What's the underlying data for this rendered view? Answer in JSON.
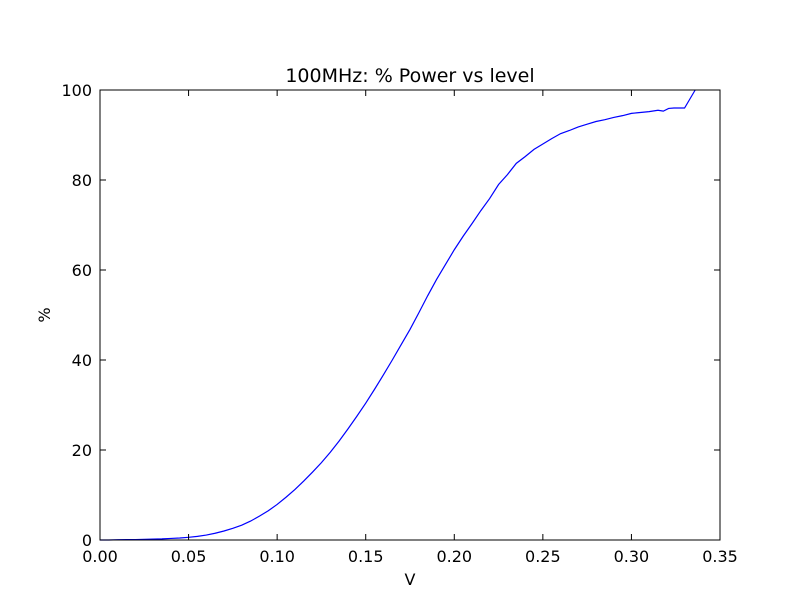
{
  "chart_data": {
    "type": "line",
    "title": "100MHz: % Power vs level",
    "xlabel": "V",
    "ylabel": "%",
    "xlim": [
      0.0,
      0.35
    ],
    "ylim": [
      0,
      100
    ],
    "grid": false,
    "xticks": [
      0.0,
      0.05,
      0.1,
      0.15,
      0.2,
      0.25,
      0.3,
      0.35
    ],
    "xtick_labels": [
      "0.00",
      "0.05",
      "0.10",
      "0.15",
      "0.20",
      "0.25",
      "0.30",
      "0.35"
    ],
    "yticks": [
      0,
      20,
      40,
      60,
      80,
      100
    ],
    "ytick_labels": [
      "0",
      "20",
      "40",
      "60",
      "80",
      "100"
    ],
    "series": [
      {
        "color": "#0000ff",
        "x": [
          0.0,
          0.005,
          0.01,
          0.015,
          0.02,
          0.025,
          0.03,
          0.035,
          0.04,
          0.045,
          0.05,
          0.055,
          0.06,
          0.065,
          0.07,
          0.075,
          0.08,
          0.085,
          0.09,
          0.095,
          0.1,
          0.105,
          0.11,
          0.115,
          0.12,
          0.125,
          0.13,
          0.135,
          0.14,
          0.145,
          0.15,
          0.155,
          0.16,
          0.165,
          0.17,
          0.175,
          0.18,
          0.185,
          0.19,
          0.195,
          0.2,
          0.205,
          0.21,
          0.215,
          0.22,
          0.225,
          0.23,
          0.235,
          0.24,
          0.245,
          0.25,
          0.255,
          0.26,
          0.265,
          0.27,
          0.275,
          0.28,
          0.285,
          0.29,
          0.295,
          0.3,
          0.305,
          0.31,
          0.315,
          0.318,
          0.321,
          0.324,
          0.327,
          0.33,
          0.333,
          0.336
        ],
        "y": [
          0.0,
          0.0,
          0.05,
          0.08,
          0.1,
          0.15,
          0.2,
          0.25,
          0.35,
          0.45,
          0.6,
          0.8,
          1.1,
          1.5,
          2.0,
          2.6,
          3.3,
          4.2,
          5.3,
          6.5,
          7.9,
          9.5,
          11.2,
          13.1,
          15.1,
          17.2,
          19.5,
          22.0,
          24.7,
          27.5,
          30.4,
          33.5,
          36.7,
          40.0,
          43.4,
          46.8,
          50.5,
          54.3,
          57.9,
          61.2,
          64.5,
          67.5,
          70.3,
          73.2,
          75.9,
          79.0,
          81.2,
          83.7,
          85.2,
          86.8,
          88.0,
          89.2,
          90.3,
          91.0,
          91.8,
          92.4,
          93.0,
          93.4,
          93.9,
          94.3,
          94.8,
          95.0,
          95.2,
          95.5,
          95.3,
          95.9,
          96.0,
          96.0,
          96.0,
          98.0,
          100.0
        ]
      }
    ]
  }
}
